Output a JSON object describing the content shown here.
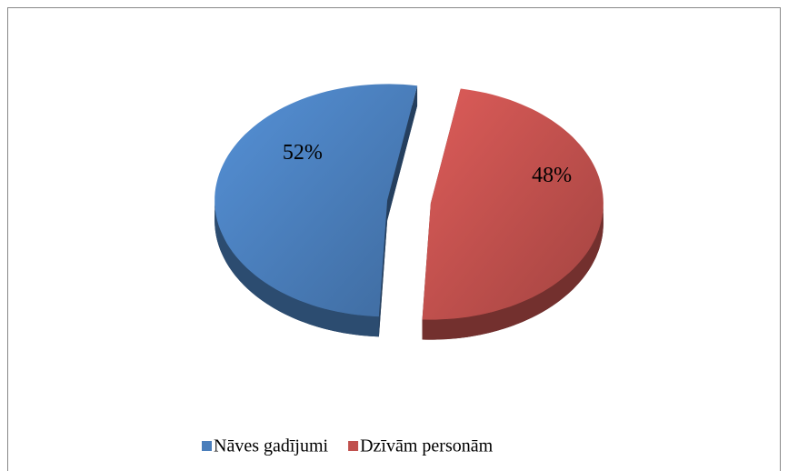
{
  "chart_data": {
    "type": "pie",
    "categories": [
      "Nāves gadījumi",
      "Dzīvām personām"
    ],
    "values": [
      52,
      48
    ],
    "value_labels": [
      "52%",
      "48%"
    ],
    "colors": [
      "#4a7ebb",
      "#c0504d"
    ],
    "legend": "bottom"
  }
}
